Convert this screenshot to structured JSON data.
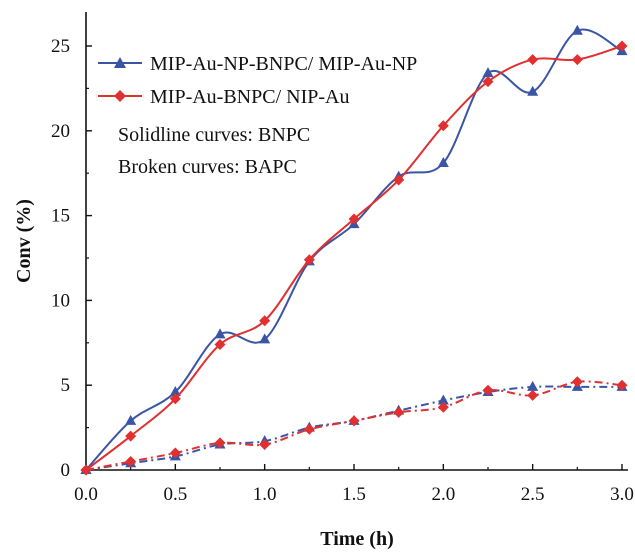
{
  "chart_data": {
    "type": "line",
    "xlabel": "Time (h)",
    "ylabel": "Conv (%)",
    "xlim": [
      0,
      3.0
    ],
    "ylim": [
      0,
      25
    ],
    "x_ticks": [
      "0.0",
      "0.5",
      "1.0",
      "1.5",
      "2.0",
      "2.5",
      "3.0"
    ],
    "y_ticks": [
      "0",
      "5",
      "10",
      "15",
      "20",
      "25"
    ],
    "x": [
      0,
      0.25,
      0.5,
      0.75,
      1.0,
      1.25,
      1.5,
      1.75,
      2.0,
      2.25,
      2.5,
      2.75,
      3.0
    ],
    "grid": false,
    "legend_position": "top-left",
    "annotations": [
      "Solidline curves: BNPC",
      "Broken curves: BAPC"
    ],
    "series": [
      {
        "name": "MIP-Au-NP-BNPC/ MIP-Au-NP",
        "color": "#3a55a6",
        "marker": "triangle",
        "style": "solid",
        "values": [
          0,
          2.9,
          4.6,
          8.0,
          7.7,
          12.3,
          14.5,
          17.3,
          18.1,
          23.4,
          22.3,
          25.9,
          24.7
        ]
      },
      {
        "name": "MIP-Au-BNPC/ NIP-Au",
        "color": "#e03030",
        "marker": "diamond",
        "style": "solid",
        "values": [
          0,
          2.0,
          4.2,
          7.4,
          8.8,
          12.4,
          14.8,
          17.1,
          20.3,
          22.9,
          24.2,
          24.2,
          25.0
        ]
      },
      {
        "name": "",
        "color": "#3a55a6",
        "marker": "triangle",
        "style": "dashdot",
        "values": [
          0,
          0.4,
          0.8,
          1.5,
          1.7,
          2.5,
          2.9,
          3.5,
          4.1,
          4.6,
          4.9,
          4.9,
          4.9
        ]
      },
      {
        "name": "",
        "color": "#e03030",
        "marker": "diamond",
        "style": "dashdot",
        "values": [
          0,
          0.5,
          1.0,
          1.6,
          1.5,
          2.4,
          2.9,
          3.4,
          3.7,
          4.7,
          4.4,
          5.2,
          5.0
        ]
      }
    ]
  }
}
